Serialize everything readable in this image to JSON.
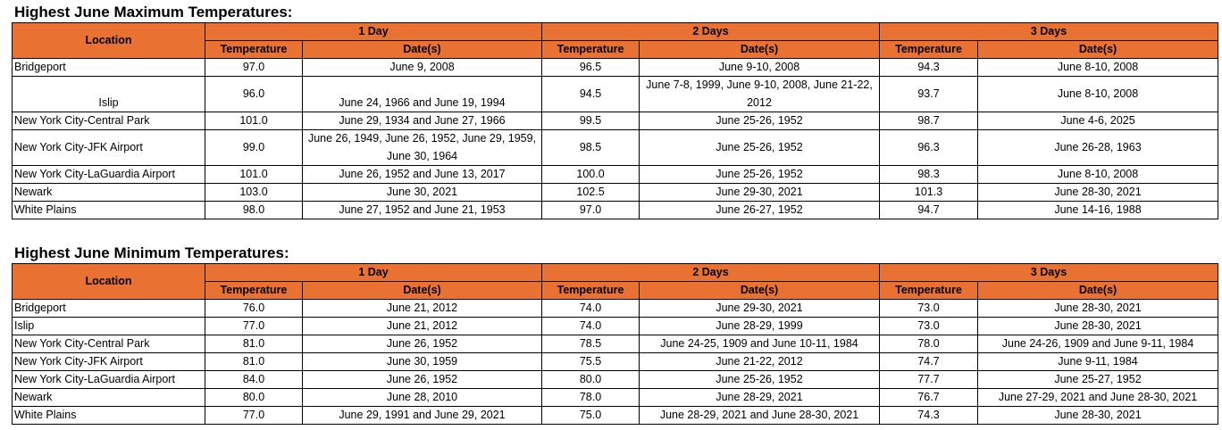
{
  "tables": [
    {
      "title": "Highest June Maximum Temperatures:",
      "location_header": "Location",
      "group_headers": [
        "1 Day",
        "2 Days",
        "3 Days"
      ],
      "sub_headers": [
        "Temperature",
        "Date(s)",
        "Temperature",
        "Date(s)",
        "Temperature",
        "Date(s)"
      ],
      "rows": [
        {
          "location": "Bridgeport",
          "t1": "97.0",
          "d1": "June 9, 2008",
          "t2": "96.5",
          "d2": "June 9-10, 2008",
          "t3": "94.3",
          "d3": "June 8-10, 2008"
        },
        {
          "location": "Islip",
          "t1": "96.0",
          "d1": "June 24, 1966 and June 19, 1994",
          "t2": "94.5",
          "d2": "June 7-8, 1999, June 9-10, 2008, June 21-22, 2012",
          "t3": "93.7",
          "d3": "June 8-10, 2008"
        },
        {
          "location": "New York City-Central Park",
          "t1": "101.0",
          "d1": "June 29, 1934 and June 27, 1966",
          "t2": "99.5",
          "d2": "June 25-26, 1952",
          "t3": "98.7",
          "d3": "June 4-6, 2025"
        },
        {
          "location": "New York City-JFK Airport",
          "t1": "99.0",
          "d1": "June 26, 1949, June 26, 1952, June 29, 1959, June 30, 1964",
          "t2": "98.5",
          "d2": "June 25-26, 1952",
          "t3": "96.3",
          "d3": "June 26-28, 1963"
        },
        {
          "location": "New York City-LaGuardia Airport",
          "t1": "101.0",
          "d1": "June 26, 1952 and June 13, 2017",
          "t2": "100.0",
          "d2": "June 25-26, 1952",
          "t3": "98.3",
          "d3": "June 8-10, 2008"
        },
        {
          "location": "Newark",
          "t1": "103.0",
          "d1": "June 30, 2021",
          "t2": "102.5",
          "d2": "June 29-30, 2021",
          "t3": "101.3",
          "d3": "June 28-30, 2021"
        },
        {
          "location": "White Plains",
          "t1": "98.0",
          "d1": "June 27, 1952 and June 21, 1953",
          "t2": "97.0",
          "d2": "June 26-27, 1952",
          "t3": "94.7",
          "d3": "June 14-16, 1988"
        }
      ]
    },
    {
      "title": "Highest June Minimum Temperatures:",
      "location_header": "Location",
      "group_headers": [
        "1 Day",
        "2 Days",
        "3 Days"
      ],
      "sub_headers": [
        "Temperature",
        "Date(s)",
        "Temperature",
        "Date(s)",
        "Temperature",
        "Date(s)"
      ],
      "rows": [
        {
          "location": "Bridgeport",
          "t1": "76.0",
          "d1": "June 21, 2012",
          "t2": "74.0",
          "d2": "June 29-30, 2021",
          "t3": "73.0",
          "d3": "June 28-30, 2021"
        },
        {
          "location": "Islip",
          "t1": "77.0",
          "d1": "June 21, 2012",
          "t2": "74.0",
          "d2": "June 28-29, 1999",
          "t3": "73.0",
          "d3": "June 28-30, 2021"
        },
        {
          "location": "New York City-Central Park",
          "t1": "81.0",
          "d1": "June 26, 1952",
          "t2": "78.5",
          "d2": "June 24-25, 1909 and June 10-11, 1984",
          "t3": "78.0",
          "d3": "June 24-26, 1909 and June 9-11, 1984"
        },
        {
          "location": "New York City-JFK Airport",
          "t1": "81.0",
          "d1": "June 30, 1959",
          "t2": "75.5",
          "d2": "June 21-22, 2012",
          "t3": "74.7",
          "d3": "June 9-11, 1984"
        },
        {
          "location": "New York City-LaGuardia Airport",
          "t1": "84.0",
          "d1": "June 26, 1952",
          "t2": "80.0",
          "d2": "June 25-26, 1952",
          "t3": "77.7",
          "d3": "June 25-27, 1952"
        },
        {
          "location": "Newark",
          "t1": "80.0",
          "d1": "June 28, 2010",
          "t2": "78.0",
          "d2": "June 28-29, 2021",
          "t3": "76.7",
          "d3": "June 27-29, 2021 and June 28-30, 2021"
        },
        {
          "location": "White Plains",
          "t1": "77.0",
          "d1": "June 29, 1991 and June 29, 2021",
          "t2": "75.0",
          "d2": "June 28-29, 2021 and June 28-30, 2021",
          "t3": "74.3",
          "d3": "June 28-30, 2021"
        }
      ]
    }
  ],
  "colors": {
    "header_fill": "#e97132",
    "border": "#000000"
  }
}
